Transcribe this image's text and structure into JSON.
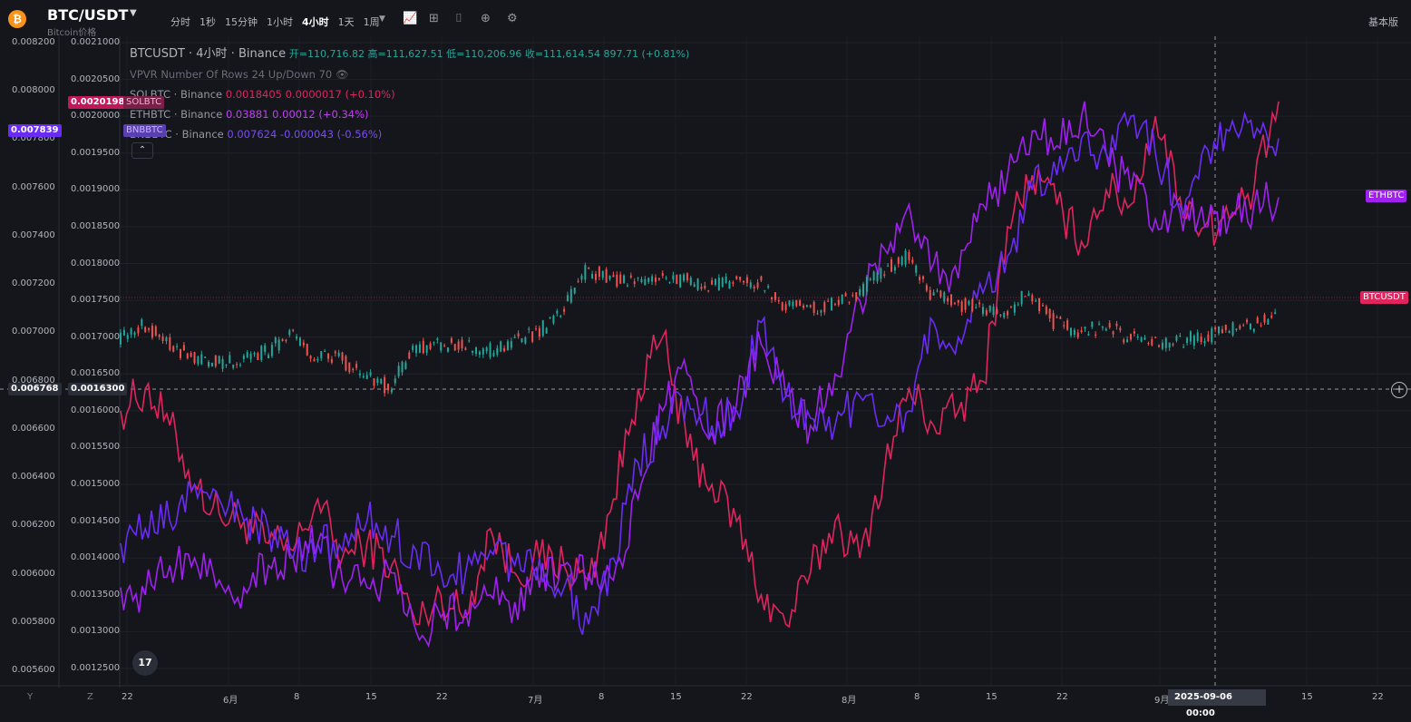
{
  "header": {
    "symbol": "BTC/USDT",
    "subtitle": "Bitcoin价格",
    "coin_icon": "₿",
    "intervals": [
      "分时",
      "1秒",
      "15分钟",
      "1小时",
      "4小时",
      "1天",
      "1周"
    ],
    "active_interval": "4小时",
    "tools": [
      "dropdown-icon",
      "indicator-icon",
      "compare-icon",
      "camera-icon",
      "add-icon",
      "settings-icon"
    ],
    "mode_label": "基本版"
  },
  "legend": {
    "main": "BTCUSDT · 4小时 · Binance",
    "ohlc": "开=110,716.82 高=111,627.51 低=110,206.96 收=111,614.54 897.71 (+0.81%)",
    "vpvr": "VPVR Number Of Rows 24 Up/Down 70",
    "series": [
      {
        "label": "SOLBTC · Binance",
        "value": "0.0018405 0.0000017 (+0.10%)",
        "color": "#e0245e"
      },
      {
        "label": "ETHBTC · Binance",
        "value": "0.03881 0.00012 (+0.34%)",
        "color": "#a020f0"
      },
      {
        "label": "BNBBTC · Binance",
        "value": "0.007624 -0.000043 (-0.56%)",
        "color": "#6a2cf5"
      }
    ]
  },
  "price_tags": {
    "solbtc": "0.0020198",
    "solbtc_name": "SOLBTC",
    "bnb_left": "0.007839",
    "bnb_name": "BNBBTC",
    "crosshair_left": "0.006768",
    "crosshair_right": "0.0016300",
    "ethbtc": "ETHBTC",
    "btcusdt": "BTCUSDT"
  },
  "axes": {
    "left_outer": [
      "0.008200",
      "0.008000",
      "0.007800",
      "0.007600",
      "0.007400",
      "0.007200",
      "0.007000",
      "0.006800",
      "0.006600",
      "0.006400",
      "0.006200",
      "0.006000",
      "0.005800",
      "0.005600"
    ],
    "left_inner": [
      "0.0021000",
      "0.0020500",
      "0.0020000",
      "0.0019500",
      "0.0019000",
      "0.0018500",
      "0.0018000",
      "0.0017500",
      "0.0017000",
      "0.0016500",
      "0.0016000",
      "0.0015500",
      "0.0015000",
      "0.0014500",
      "0.0014000",
      "0.0013500",
      "0.0013000",
      "0.0012500"
    ],
    "x_labels": [
      "22",
      "6月",
      "8",
      "15",
      "22",
      "7月",
      "8",
      "15",
      "22",
      "8月",
      "8",
      "15",
      "22",
      "9月",
      "15",
      "22"
    ],
    "crosshair_date": "2025-09-06",
    "crosshair_time": "00:00",
    "scale_buttons": [
      "Y",
      "Z"
    ]
  },
  "logo": "17",
  "colors": {
    "solbtc": "#e0245e",
    "ethbtc": "#a020f0",
    "bnbbtc": "#6a2cf5",
    "btc_up": "#26a69a",
    "btc_down": "#ef5350"
  },
  "chart_data": {
    "type": "line",
    "series": [
      {
        "name": "SOLBTC",
        "values": [
          0.0016,
          0.00163,
          0.00158,
          0.0015,
          0.00146,
          0.00145,
          0.00142,
          0.00141,
          0.00148,
          0.0014,
          0.00142,
          0.00139,
          0.00131,
          0.00135,
          0.00132,
          0.00144,
          0.00138,
          0.0014,
          0.00139,
          0.00137,
          0.00148,
          0.00163,
          0.0017,
          0.00155,
          0.0015,
          0.00145,
          0.00135,
          0.00131,
          0.00138,
          0.00145,
          0.0014,
          0.00152,
          0.00163,
          0.00158,
          0.0016,
          0.00164,
          0.00185,
          0.00192,
          0.00188,
          0.00183,
          0.0019,
          0.00188,
          0.002,
          0.00189,
          0.00185,
          0.00186,
          0.0019,
          0.00202
        ]
      },
      {
        "name": "ETHBTC",
        "values": [
          0.00136,
          0.00135,
          0.00139,
          0.0014,
          0.00137,
          0.00136,
          0.00139,
          0.0014,
          0.00142,
          0.00137,
          0.00136,
          0.00138,
          0.0013,
          0.00132,
          0.00133,
          0.00135,
          0.00134,
          0.00136,
          0.00139,
          0.00138,
          0.00137,
          0.00148,
          0.0016,
          0.00165,
          0.00157,
          0.00161,
          0.00169,
          0.00162,
          0.00158,
          0.00165,
          0.00175,
          0.00182,
          0.00188,
          0.0018,
          0.00178,
          0.00188,
          0.00192,
          0.00198,
          0.00196,
          0.002,
          0.00195,
          0.0019,
          0.00186,
          0.00187,
          0.00185,
          0.00186,
          0.00188,
          0.00189
        ]
      },
      {
        "name": "BNBBTC",
        "values": [
          0.00142,
          0.00144,
          0.00145,
          0.0015,
          0.00148,
          0.00145,
          0.00144,
          0.0014,
          0.00142,
          0.00141,
          0.00145,
          0.00143,
          0.00141,
          0.00138,
          0.00138,
          0.00141,
          0.00139,
          0.0014,
          0.00136,
          0.00131,
          0.0014,
          0.00153,
          0.00158,
          0.00162,
          0.00158,
          0.0016,
          0.00172,
          0.00162,
          0.00159,
          0.00158,
          0.00162,
          0.00158,
          0.0016,
          0.00172,
          0.0017,
          0.00176,
          0.00181,
          0.0019,
          0.00192,
          0.00197,
          0.00195,
          0.002,
          0.00195,
          0.00188,
          0.00196,
          0.00198,
          0.00197,
          0.00197
        ]
      },
      {
        "name": "BTCUSDT",
        "values": [
          0.0017,
          0.001715,
          0.001695,
          0.00167,
          0.001665,
          0.00167,
          0.00168,
          0.001705,
          0.001675,
          0.00167,
          0.00165,
          0.00163,
          0.001685,
          0.00169,
          0.001688,
          0.00168,
          0.001695,
          0.001705,
          0.001735,
          0.00179,
          0.00178,
          0.001775,
          0.001778,
          0.001777,
          0.00177,
          0.001778,
          0.001775,
          0.001745,
          0.001738,
          0.001745,
          0.00176,
          0.00179,
          0.00181,
          0.00176,
          0.001745,
          0.00174,
          0.001735,
          0.00176,
          0.00172,
          0.001705,
          0.001715,
          0.0017,
          0.00169,
          0.001695,
          0.0017,
          0.00171,
          0.001715,
          0.001735
        ]
      }
    ],
    "ylim_inner": [
      0.00123,
      0.00211
    ],
    "ylim_outer": [
      0.00554,
      0.00823
    ],
    "x_ticks": [
      "22",
      "6月",
      "8",
      "15",
      "22",
      "7月",
      "8",
      "15",
      "22",
      "8月",
      "8",
      "15",
      "22",
      "9月",
      "15",
      "22"
    ]
  }
}
